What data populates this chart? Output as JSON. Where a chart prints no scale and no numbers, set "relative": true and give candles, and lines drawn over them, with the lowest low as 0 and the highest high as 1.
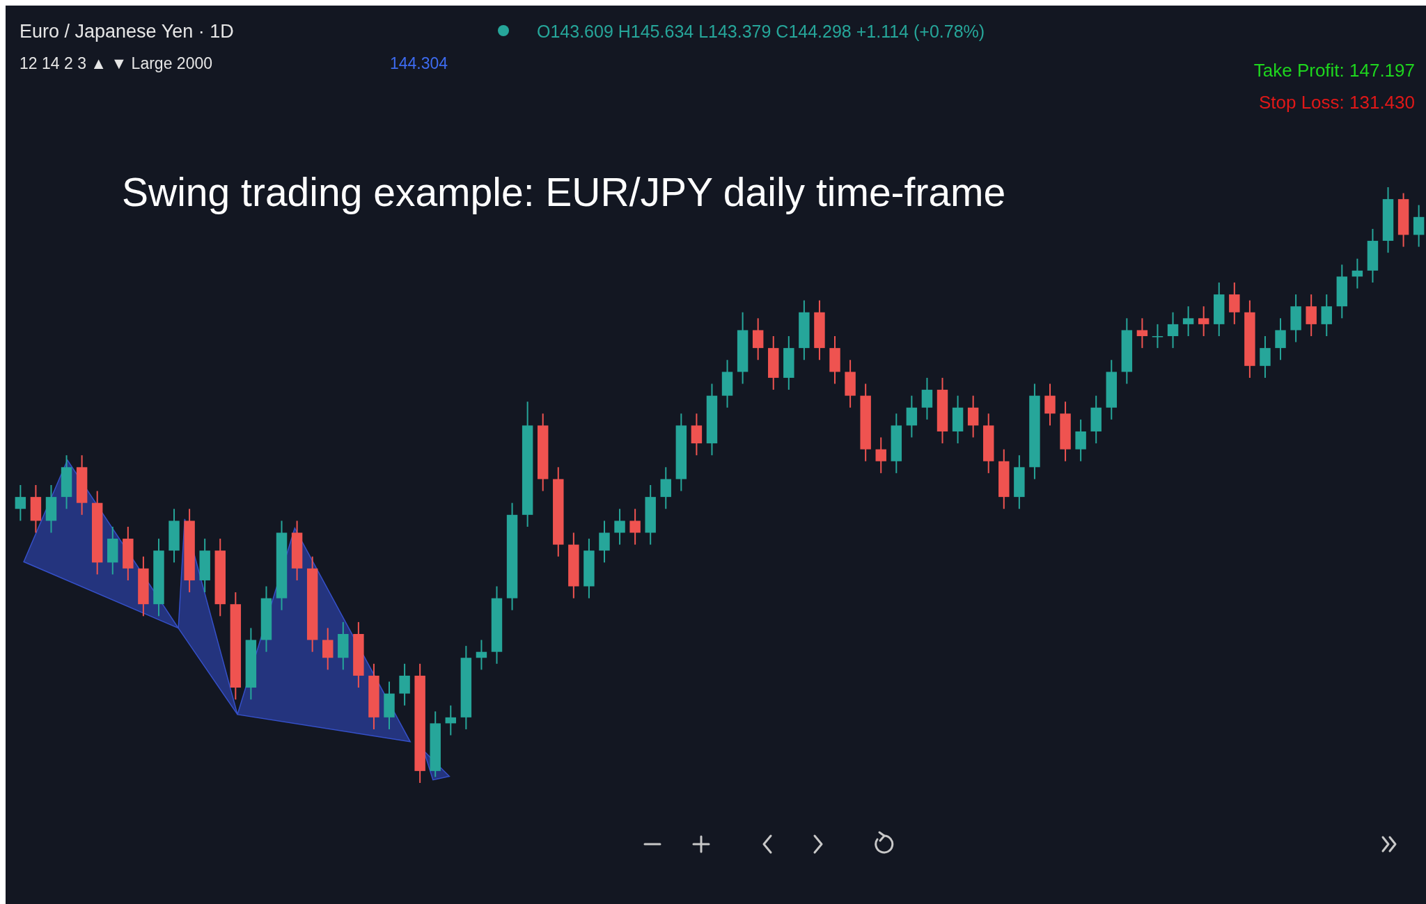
{
  "chart_data": {
    "type": "candlestick",
    "title": "Swing trading example: EUR/JPY daily time-frame",
    "relative": true,
    "annotations": [
      "Euro / Japanese Yen · 1D",
      "O143.609 H145.634 L143.379 C144.298 +1.114 (+0.78%)",
      "12 14 2 3 ▲ ▼ Large 2000",
      "144.304",
      "Take Profit: 147.197",
      "Stop Loss: 131.430"
    ],
    "categories": [
      null,
      null,
      null,
      null,
      null,
      null,
      null,
      null,
      null,
      null,
      null,
      null,
      null,
      null,
      null,
      null,
      null,
      null,
      null,
      null,
      null,
      null,
      null,
      null,
      null,
      null,
      null,
      null,
      null,
      null,
      null,
      null,
      null,
      null,
      null,
      null,
      null,
      null,
      null,
      null,
      null,
      null,
      null,
      null,
      null,
      null,
      null,
      null,
      null,
      null,
      null,
      null,
      null,
      null,
      null,
      null,
      null,
      null,
      null,
      null,
      null,
      null,
      null,
      null,
      null,
      null,
      null,
      null,
      null,
      null,
      null,
      null,
      null,
      null,
      null,
      null,
      null,
      null,
      null,
      null,
      null,
      null,
      null,
      null,
      null,
      null,
      null,
      null,
      null,
      null,
      null,
      null
    ],
    "ohlc": [
      [
        0.46,
        0.5,
        0.44,
        0.48
      ],
      [
        0.48,
        0.5,
        0.42,
        0.44
      ],
      [
        0.44,
        0.5,
        0.42,
        0.48
      ],
      [
        0.48,
        0.55,
        0.46,
        0.53
      ],
      [
        0.53,
        0.55,
        0.45,
        0.47
      ],
      [
        0.47,
        0.49,
        0.35,
        0.37
      ],
      [
        0.37,
        0.43,
        0.35,
        0.41
      ],
      [
        0.41,
        0.43,
        0.34,
        0.36
      ],
      [
        0.36,
        0.38,
        0.28,
        0.3
      ],
      [
        0.3,
        0.41,
        0.28,
        0.39
      ],
      [
        0.39,
        0.46,
        0.37,
        0.44
      ],
      [
        0.44,
        0.46,
        0.32,
        0.34
      ],
      [
        0.34,
        0.41,
        0.32,
        0.39
      ],
      [
        0.39,
        0.41,
        0.28,
        0.3
      ],
      [
        0.3,
        0.32,
        0.14,
        0.16
      ],
      [
        0.16,
        0.26,
        0.14,
        0.24
      ],
      [
        0.24,
        0.33,
        0.22,
        0.31
      ],
      [
        0.31,
        0.44,
        0.29,
        0.42
      ],
      [
        0.42,
        0.44,
        0.34,
        0.36
      ],
      [
        0.36,
        0.38,
        0.22,
        0.24
      ],
      [
        0.24,
        0.26,
        0.19,
        0.21
      ],
      [
        0.21,
        0.27,
        0.19,
        0.25
      ],
      [
        0.25,
        0.27,
        0.16,
        0.18
      ],
      [
        0.18,
        0.2,
        0.09,
        0.11
      ],
      [
        0.11,
        0.17,
        0.09,
        0.15
      ],
      [
        0.15,
        0.2,
        0.13,
        0.18
      ],
      [
        0.18,
        0.2,
        0.0,
        0.02
      ],
      [
        0.02,
        0.12,
        0.01,
        0.1
      ],
      [
        0.1,
        0.13,
        0.08,
        0.11
      ],
      [
        0.11,
        0.23,
        0.09,
        0.21
      ],
      [
        0.21,
        0.24,
        0.19,
        0.22
      ],
      [
        0.22,
        0.33,
        0.2,
        0.31
      ],
      [
        0.31,
        0.47,
        0.29,
        0.45
      ],
      [
        0.45,
        0.64,
        0.43,
        0.6
      ],
      [
        0.6,
        0.62,
        0.49,
        0.51
      ],
      [
        0.51,
        0.53,
        0.38,
        0.4
      ],
      [
        0.4,
        0.42,
        0.31,
        0.33
      ],
      [
        0.33,
        0.41,
        0.31,
        0.39
      ],
      [
        0.39,
        0.44,
        0.37,
        0.42
      ],
      [
        0.42,
        0.46,
        0.4,
        0.44
      ],
      [
        0.44,
        0.46,
        0.4,
        0.42
      ],
      [
        0.42,
        0.5,
        0.4,
        0.48
      ],
      [
        0.48,
        0.53,
        0.46,
        0.51
      ],
      [
        0.51,
        0.62,
        0.49,
        0.6
      ],
      [
        0.6,
        0.62,
        0.55,
        0.57
      ],
      [
        0.57,
        0.67,
        0.55,
        0.65
      ],
      [
        0.65,
        0.71,
        0.63,
        0.69
      ],
      [
        0.69,
        0.79,
        0.67,
        0.76
      ],
      [
        0.76,
        0.78,
        0.71,
        0.73
      ],
      [
        0.73,
        0.75,
        0.66,
        0.68
      ],
      [
        0.68,
        0.75,
        0.66,
        0.73
      ],
      [
        0.73,
        0.81,
        0.71,
        0.79
      ],
      [
        0.79,
        0.81,
        0.71,
        0.73
      ],
      [
        0.73,
        0.75,
        0.67,
        0.69
      ],
      [
        0.69,
        0.71,
        0.63,
        0.65
      ],
      [
        0.65,
        0.67,
        0.54,
        0.56
      ],
      [
        0.56,
        0.58,
        0.52,
        0.54
      ],
      [
        0.54,
        0.62,
        0.52,
        0.6
      ],
      [
        0.6,
        0.65,
        0.58,
        0.63
      ],
      [
        0.63,
        0.68,
        0.61,
        0.66
      ],
      [
        0.66,
        0.68,
        0.57,
        0.59
      ],
      [
        0.59,
        0.65,
        0.57,
        0.63
      ],
      [
        0.63,
        0.65,
        0.58,
        0.6
      ],
      [
        0.6,
        0.62,
        0.52,
        0.54
      ],
      [
        0.54,
        0.56,
        0.46,
        0.48
      ],
      [
        0.48,
        0.55,
        0.46,
        0.53
      ],
      [
        0.53,
        0.67,
        0.51,
        0.65
      ],
      [
        0.65,
        0.67,
        0.6,
        0.62
      ],
      [
        0.62,
        0.64,
        0.54,
        0.56
      ],
      [
        0.56,
        0.61,
        0.54,
        0.59
      ],
      [
        0.59,
        0.65,
        0.57,
        0.63
      ],
      [
        0.63,
        0.71,
        0.61,
        0.69
      ],
      [
        0.69,
        0.78,
        0.67,
        0.76
      ],
      [
        0.76,
        0.78,
        0.73,
        0.75
      ],
      [
        0.75,
        0.77,
        0.73,
        0.75
      ],
      [
        0.75,
        0.79,
        0.73,
        0.77
      ],
      [
        0.77,
        0.8,
        0.75,
        0.78
      ],
      [
        0.78,
        0.8,
        0.75,
        0.77
      ],
      [
        0.77,
        0.84,
        0.75,
        0.82
      ],
      [
        0.82,
        0.84,
        0.77,
        0.79
      ],
      [
        0.79,
        0.81,
        0.68,
        0.7
      ],
      [
        0.7,
        0.75,
        0.68,
        0.73
      ],
      [
        0.73,
        0.78,
        0.71,
        0.76
      ],
      [
        0.76,
        0.82,
        0.74,
        0.8
      ],
      [
        0.8,
        0.82,
        0.75,
        0.77
      ],
      [
        0.77,
        0.82,
        0.75,
        0.8
      ],
      [
        0.8,
        0.87,
        0.78,
        0.85
      ],
      [
        0.85,
        0.88,
        0.83,
        0.86
      ],
      [
        0.86,
        0.93,
        0.84,
        0.91
      ],
      [
        0.91,
        1.0,
        0.89,
        0.98
      ],
      [
        0.98,
        0.99,
        0.9,
        0.92
      ],
      [
        0.92,
        0.97,
        0.9,
        0.95
      ]
    ]
  }
}
